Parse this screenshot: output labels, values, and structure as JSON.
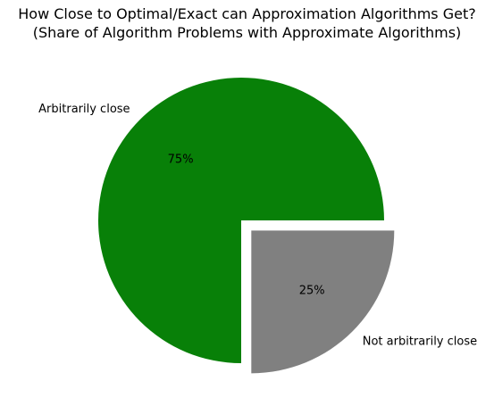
{
  "chart_data": {
    "type": "pie",
    "title_lines": [
      "How Close to Optimal/Exact can Approximation Algorithms Get?",
      "(Share of Algorithm Problems with Approximate Algorithms)"
    ],
    "categories": [
      "Arbitrarily close",
      "Not arbitrarily close"
    ],
    "values": [
      75,
      25
    ],
    "value_labels": [
      "75%",
      "25%"
    ],
    "colors": [
      "#088008",
      "#808080"
    ],
    "exploded": [
      false,
      true
    ],
    "start_angle_deg": 0,
    "direction": "counterclockwise",
    "legend": "none"
  }
}
